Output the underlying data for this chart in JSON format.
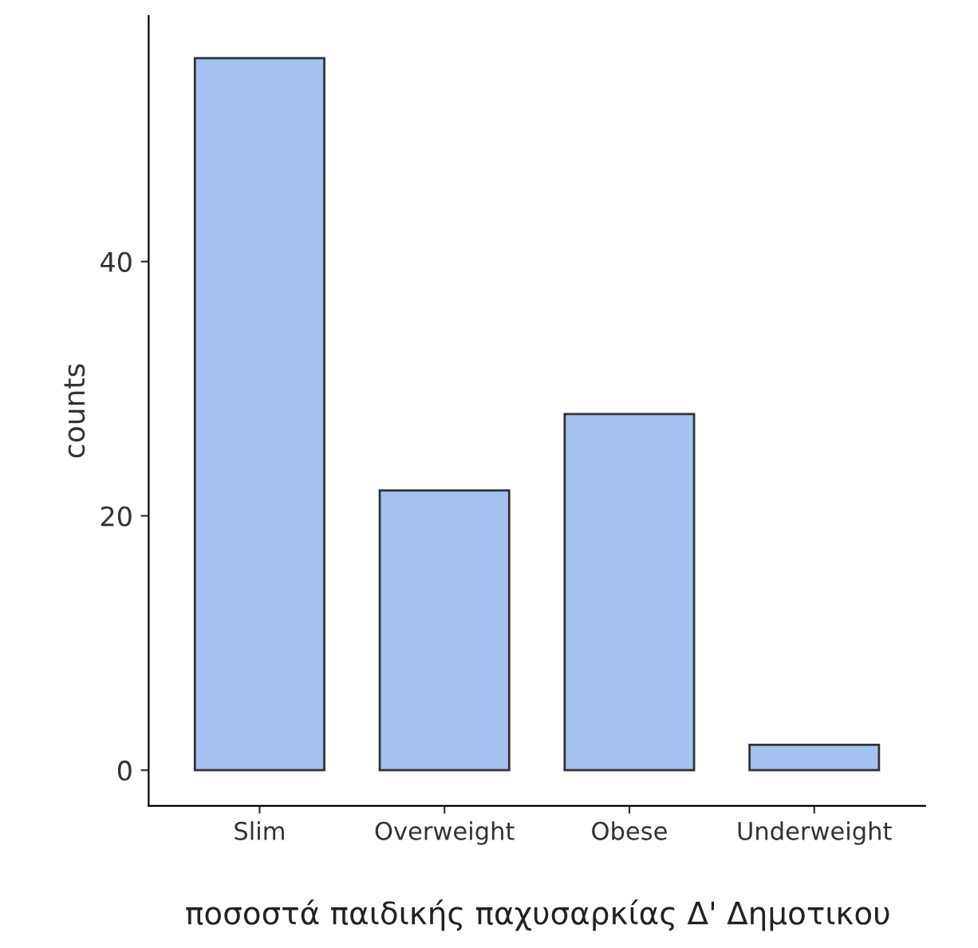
{
  "chart_data": {
    "type": "bar",
    "xlabel": "ποσοστά παιδικής παχυσαρκίας Δ' Δημοτικου",
    "ylabel": "counts",
    "categories": [
      "Slim",
      "Overweight",
      "Obese",
      "Underweight"
    ],
    "series": [
      {
        "color": "#a4c2f0",
        "values": [
          56,
          22,
          28,
          2
        ]
      }
    ],
    "ylim": [
      -2.8,
      59.3
    ],
    "yticks": [
      0,
      20,
      40
    ],
    "grid": false,
    "legend": false
  }
}
